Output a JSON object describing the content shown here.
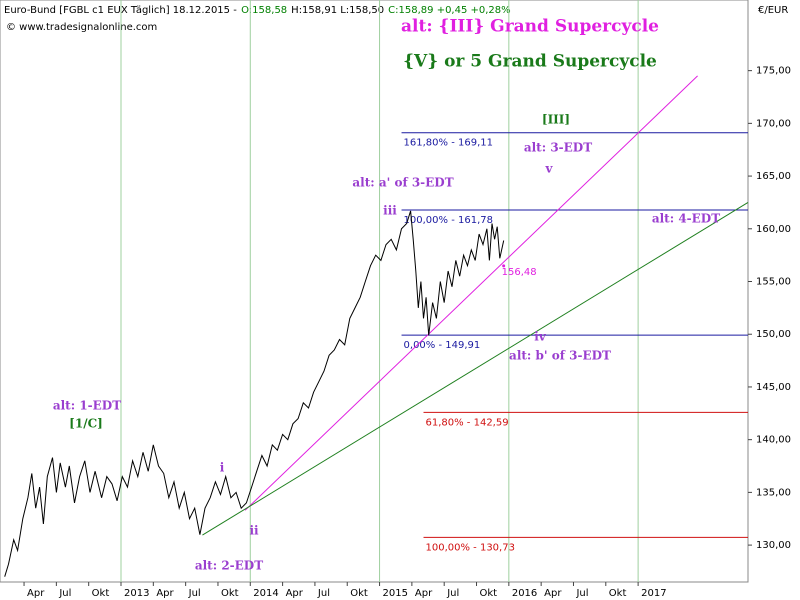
{
  "chart_data": {
    "type": "line",
    "header": [
      {
        "text": "Euro-Bund [FGBL c1 EUX Täglich] 18.12.2015 -",
        "color": "#000000"
      },
      {
        "text": "O:158,58",
        "color": "#008000"
      },
      {
        "text": "H:158,91 L:158,50",
        "color": "#000000"
      },
      {
        "text": "C:158,89 +0,45 +0,28%",
        "color": "#008000"
      }
    ],
    "source": "© www.tradesignalonline.com",
    "y_unit": "€/EUR",
    "color": "#000000",
    "x": [
      2012.1,
      2012.13,
      2012.17,
      2012.2,
      2012.24,
      2012.28,
      2012.31,
      2012.34,
      2012.37,
      2012.4,
      2012.43,
      2012.47,
      2012.5,
      2012.53,
      2012.57,
      2012.6,
      2012.64,
      2012.68,
      2012.72,
      2012.76,
      2012.8,
      2012.85,
      2012.89,
      2012.93,
      2012.97,
      2013.01,
      2013.05,
      2013.09,
      2013.13,
      2013.17,
      2013.21,
      2013.25,
      2013.29,
      2013.33,
      2013.37,
      2013.41,
      2013.45,
      2013.49,
      2013.53,
      2013.57,
      2013.61,
      2013.65,
      2013.69,
      2013.73,
      2013.77,
      2013.81,
      2013.85,
      2013.89,
      2013.93,
      2013.97,
      2014.01,
      2014.05,
      2014.09,
      2014.13,
      2014.17,
      2014.21,
      2014.25,
      2014.29,
      2014.33,
      2014.37,
      2014.41,
      2014.45,
      2014.49,
      2014.53,
      2014.57,
      2014.61,
      2014.65,
      2014.69,
      2014.73,
      2014.77,
      2014.81,
      2014.85,
      2014.89,
      2014.93,
      2014.97,
      2015.01,
      2015.05,
      2015.09,
      2015.13,
      2015.17,
      2015.21,
      2015.24,
      2015.26,
      2015.28,
      2015.3,
      2015.32,
      2015.34,
      2015.36,
      2015.38,
      2015.41,
      2015.44,
      2015.47,
      2015.5,
      2015.53,
      2015.56,
      2015.59,
      2015.62,
      2015.65,
      2015.68,
      2015.71,
      2015.74,
      2015.77,
      2015.8,
      2015.83,
      2015.85,
      2015.87,
      2015.89,
      2015.91,
      2015.93,
      2015.96
    ],
    "values": [
      127.0,
      128.2,
      130.5,
      129.5,
      132.5,
      134.5,
      136.8,
      133.5,
      135.5,
      132.0,
      136.5,
      138.3,
      135.0,
      137.8,
      135.5,
      137.5,
      134.0,
      136.5,
      138.0,
      135.0,
      137.0,
      134.5,
      136.5,
      135.8,
      134.2,
      136.5,
      135.5,
      138.0,
      136.5,
      138.8,
      137.0,
      139.5,
      137.5,
      136.8,
      134.5,
      136.0,
      133.5,
      135.0,
      132.5,
      133.5,
      131.0,
      133.5,
      134.5,
      136.0,
      134.8,
      136.5,
      134.5,
      135.0,
      133.5,
      134.0,
      135.5,
      137.0,
      138.5,
      137.5,
      139.5,
      139.0,
      140.5,
      140.0,
      141.5,
      142.0,
      143.5,
      143.0,
      144.5,
      145.5,
      146.5,
      148.0,
      148.5,
      149.5,
      149.0,
      151.5,
      152.5,
      153.5,
      155.0,
      156.5,
      157.5,
      157.0,
      158.5,
      159.0,
      158.0,
      160.0,
      160.5,
      161.7,
      159.0,
      156.0,
      152.5,
      155.0,
      151.5,
      153.5,
      149.9,
      153.0,
      151.5,
      155.0,
      153.0,
      156.0,
      154.5,
      157.0,
      155.5,
      157.5,
      156.5,
      158.0,
      157.0,
      159.5,
      158.5,
      160.0,
      157.0,
      160.5,
      159.0,
      160.2,
      157.2,
      158.89
    ],
    "xlim": [
      2012.064,
      2017.85
    ],
    "ylim": [
      126.5,
      181.7
    ],
    "xticks": [
      {
        "value": 2012.25,
        "label": "Apr"
      },
      {
        "value": 2012.5,
        "label": "Jul"
      },
      {
        "value": 2012.75,
        "label": "Okt"
      },
      {
        "value": 2013,
        "label": "2013"
      },
      {
        "value": 2013.25,
        "label": "Apr"
      },
      {
        "value": 2013.5,
        "label": "Jul"
      },
      {
        "value": 2013.75,
        "label": "Okt"
      },
      {
        "value": 2014,
        "label": "2014"
      },
      {
        "value": 2014.25,
        "label": "Apr"
      },
      {
        "value": 2014.5,
        "label": "Jul"
      },
      {
        "value": 2014.75,
        "label": "Okt"
      },
      {
        "value": 2015,
        "label": "2015"
      },
      {
        "value": 2015.25,
        "label": "Apr"
      },
      {
        "value": 2015.5,
        "label": "Jul"
      },
      {
        "value": 2015.75,
        "label": "Okt"
      },
      {
        "value": 2016,
        "label": "2016"
      },
      {
        "value": 2016.25,
        "label": "Apr"
      },
      {
        "value": 2016.5,
        "label": "Jul"
      },
      {
        "value": 2016.75,
        "label": "Okt"
      },
      {
        "value": 2017,
        "label": "2017"
      }
    ],
    "yticks": [
      {
        "value": 130,
        "label": "130,00"
      },
      {
        "value": 135,
        "label": "135,00"
      },
      {
        "value": 140,
        "label": "140,00"
      },
      {
        "value": 145,
        "label": "145,00"
      },
      {
        "value": 150,
        "label": "150,00"
      },
      {
        "value": 155,
        "label": "155,00"
      },
      {
        "value": 160,
        "label": "160,00"
      },
      {
        "value": 165,
        "label": "165,00"
      },
      {
        "value": 170,
        "label": "170,00"
      },
      {
        "value": 175,
        "label": "175,00"
      }
    ],
    "grid": "years",
    "levels": [
      {
        "value": 169.11,
        "label": "161,80% - 169,11",
        "color": "#1a1aa0",
        "x0": 2015.17
      },
      {
        "value": 161.78,
        "label": "100,00% - 161,78",
        "color": "#1a1aa0",
        "x0": 2015.17
      },
      {
        "value": 149.91,
        "label": "0,00% - 149,91",
        "color": "#1a1aa0",
        "x0": 2015.17
      },
      {
        "value": 142.59,
        "label": "61,80% - 142,59",
        "color": "#d01010",
        "x0": 2015.34
      },
      {
        "value": 130.73,
        "label": "100,00% - 130,73",
        "color": "#d01010",
        "x0": 2015.34
      }
    ],
    "trendlines": [
      {
        "color": "#e020e0",
        "x": [
          2013.96,
          2017.46
        ],
        "values": [
          133.3,
          174.5
        ]
      },
      {
        "color": "#208020",
        "x": [
          2013.63,
          2017.85
        ],
        "values": [
          130.95,
          162.5
        ]
      }
    ],
    "markers": [
      {
        "x": 2015.96,
        "value": 156.48,
        "label": "156,48",
        "color": "#e020e0"
      }
    ],
    "annotations": [
      {
        "text": "alt: {III} Grand Supercycle",
        "color": "#e020e0"
      },
      {
        "text": "{V} or 5 Grand Supercycle",
        "color": "#1a7a1a"
      },
      {
        "text": "[III]",
        "color": "#1a7a1a"
      },
      {
        "text": "alt: 3-EDT",
        "color": "#9a3ecf"
      },
      {
        "text": "v",
        "color": "#9a3ecf"
      },
      {
        "text": "alt: a' of 3-EDT",
        "color": "#9a3ecf"
      },
      {
        "text": "iii",
        "color": "#9a3ecf"
      },
      {
        "text": "alt: 4-EDT",
        "color": "#9a3ecf"
      },
      {
        "text": "iv",
        "color": "#9a3ecf"
      },
      {
        "text": "alt: b' of 3-EDT",
        "color": "#9a3ecf"
      },
      {
        "text": "alt: 1-EDT",
        "color": "#9a3ecf"
      },
      {
        "text": "[1/C]",
        "color": "#1a7a1a"
      },
      {
        "text": "i",
        "color": "#9a3ecf"
      },
      {
        "text": "ii",
        "color": "#9a3ecf"
      },
      {
        "text": "alt: 2-EDT",
        "color": "#9a3ecf"
      }
    ]
  }
}
